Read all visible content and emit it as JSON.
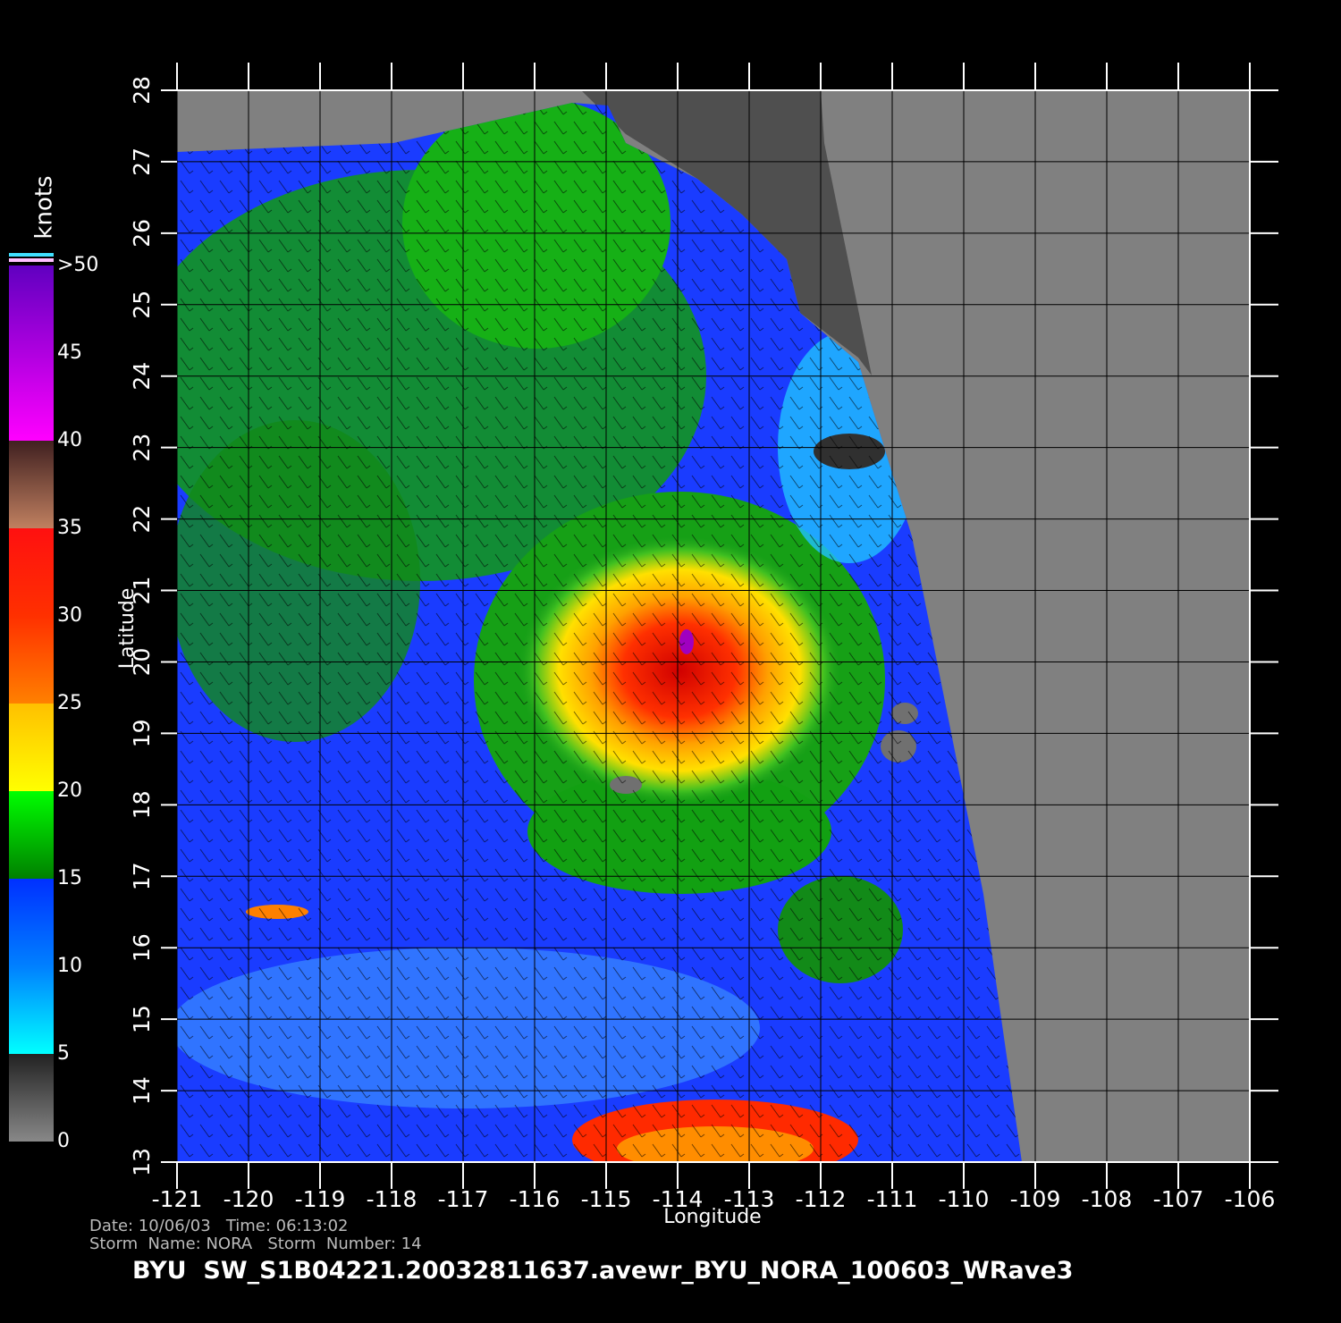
{
  "map": {
    "x_label": "Longitude",
    "y_label": "Latitude",
    "xlim": [
      -121,
      -106
    ],
    "ylim": [
      13,
      28
    ],
    "xticks": [
      -121,
      -120,
      -119,
      -118,
      -117,
      -116,
      -115,
      -114,
      -113,
      -112,
      -111,
      -110,
      -109,
      -108,
      -107,
      -106
    ],
    "yticks": [
      13,
      14,
      15,
      16,
      17,
      18,
      19,
      20,
      21,
      22,
      23,
      24,
      25,
      26,
      27,
      28
    ],
    "colorbar": {
      "title": "knots",
      "lim": [
        0,
        50
      ],
      "ticks": [
        0,
        5,
        10,
        15,
        20,
        25,
        30,
        35,
        40,
        45,
        {
          "value": 50,
          "label": ">50"
        }
      ]
    },
    "footer": {
      "line1": "Date: 10/06/03   Time: 06:13:02",
      "line2": "Storm  Name: NORA   Storm  Number: 14",
      "product": "BYU  SW_S1B04221.20032811637.avewr_BYU_NORA_100603_WRave3"
    }
  }
}
